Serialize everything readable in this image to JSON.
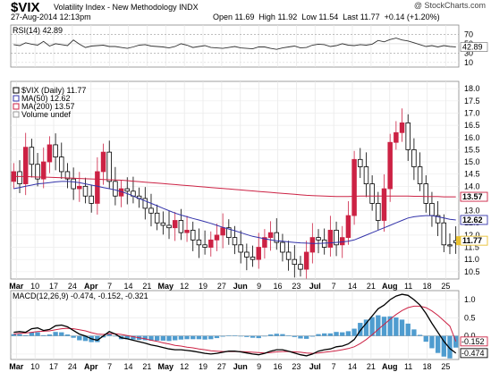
{
  "header": {
    "symbol": "$VIX",
    "name": "Volatility Index - New Methodology  INDX",
    "datetime": "27-Aug-2014 12:13pm",
    "open_label": "Open",
    "open": "11.69",
    "high_label": "High",
    "high": "11.92",
    "low_label": "Low",
    "low": "11.54",
    "last_label": "Last",
    "last": "11.77",
    "change": "+0.14 (+1.20%)",
    "credit": "@ StockCharts.com"
  },
  "chart_data": [
    {
      "type": "line",
      "panel": "rsi",
      "label": "RSI(14) 42.89",
      "yticks": [
        10,
        30,
        50,
        70
      ],
      "ylim": [
        0,
        90
      ],
      "last_label": "42.89",
      "values": [
        48,
        46,
        52,
        49,
        47,
        55,
        45,
        50,
        48,
        46,
        58,
        49,
        42,
        45,
        46,
        47,
        44,
        44,
        42,
        40,
        43,
        47,
        48,
        45,
        44,
        43,
        41,
        44,
        50,
        47,
        42,
        44,
        46,
        42,
        41,
        40,
        42,
        44,
        41,
        40,
        39,
        43,
        43,
        40,
        38,
        41,
        43,
        45,
        41,
        42,
        47,
        49,
        48,
        44,
        46,
        50,
        47,
        46,
        48,
        47,
        49,
        57,
        54,
        59,
        62,
        58,
        56,
        52,
        48,
        44,
        46,
        43,
        46,
        44,
        43
      ]
    },
    {
      "type": "candlestick",
      "panel": "price",
      "title": "$VIX (Daily) 11.77",
      "legend": [
        {
          "name": "$VIX (Daily) 11.77",
          "color": "#000000"
        },
        {
          "name": "MA(50) 12.62",
          "color": "#3333aa"
        },
        {
          "name": "MA(200) 13.57",
          "color": "#cc2244"
        },
        {
          "name": "Volume undef",
          "color": "#999999"
        }
      ],
      "ylim": [
        10.2,
        18.3
      ],
      "yticks": [
        10.5,
        11.0,
        11.5,
        12.0,
        12.5,
        13.0,
        13.5,
        14.0,
        14.5,
        15.0,
        15.5,
        16.0,
        16.5,
        17.0,
        17.5,
        18.0
      ],
      "last_badges": [
        {
          "value": 13.57,
          "label": "13.57",
          "color": "#cc2244"
        },
        {
          "value": 12.62,
          "label": "12.62",
          "color": "#3333aa"
        },
        {
          "value": 11.77,
          "label": "11.77",
          "color": "#e8c030"
        }
      ],
      "x_labels": [
        "Mar",
        "10",
        "17",
        "24",
        "Apr",
        "7",
        "14",
        "21",
        "May",
        "12",
        "19",
        "27",
        "Jun",
        "9",
        "16",
        "23",
        "Jul",
        "7",
        "14",
        "21",
        "Aug",
        "11",
        "18",
        "25"
      ],
      "close": [
        14.2,
        14.6,
        14.1,
        15.6,
        14.9,
        14.3,
        15.0,
        15.7,
        15.2,
        14.6,
        14.3,
        13.9,
        14.0,
        13.6,
        13.3,
        14.6,
        15.4,
        14.2,
        13.6,
        13.9,
        13.8,
        13.6,
        13.5,
        13.1,
        12.9,
        12.5,
        12.4,
        12.3,
        12.6,
        12.1,
        12.2,
        11.8,
        11.6,
        11.5,
        11.8,
        12.0,
        12.3,
        11.9,
        11.6,
        11.3,
        11.1,
        11.0,
        11.5,
        11.9,
        12.1,
        11.7,
        11.3,
        11.0,
        10.8,
        10.6,
        11.3,
        11.9,
        11.8,
        11.5,
        12.2,
        11.6,
        11.9,
        12.8,
        15.1,
        14.8,
        14.1,
        13.3,
        12.6,
        13.9,
        15.8,
        16.2,
        16.6,
        15.5,
        14.8,
        14.1,
        13.3,
        12.8,
        12.5,
        11.6,
        11.77
      ],
      "open": [
        14.6,
        14.1,
        15.6,
        14.9,
        14.3,
        15.0,
        15.7,
        15.2,
        14.6,
        14.3,
        13.9,
        14.0,
        13.6,
        13.3,
        14.6,
        15.4,
        14.2,
        13.6,
        13.9,
        13.8,
        13.6,
        13.5,
        13.1,
        12.9,
        12.5,
        12.4,
        12.3,
        12.6,
        12.1,
        12.2,
        11.8,
        11.6,
        11.5,
        11.8,
        12.0,
        12.3,
        11.9,
        11.6,
        11.3,
        11.1,
        11.0,
        11.5,
        11.9,
        12.1,
        11.7,
        11.3,
        11.0,
        10.8,
        10.6,
        11.3,
        11.9,
        11.8,
        11.5,
        12.2,
        11.6,
        11.9,
        12.8,
        15.1,
        14.8,
        14.1,
        13.3,
        12.6,
        13.9,
        15.8,
        16.2,
        16.6,
        15.5,
        14.8,
        14.1,
        13.3,
        12.8,
        12.5,
        11.6,
        11.6,
        11.69
      ],
      "ma50": [
        13.9,
        13.95,
        14.0,
        14.05,
        14.1,
        14.12,
        14.15,
        14.18,
        14.2,
        14.2,
        14.18,
        14.15,
        14.1,
        14.05,
        14.0,
        13.95,
        13.9,
        13.85,
        13.78,
        13.7,
        13.6,
        13.5,
        13.4,
        13.3,
        13.2,
        13.1,
        13.0,
        12.9,
        12.82,
        12.75,
        12.68,
        12.62,
        12.55,
        12.48,
        12.4,
        12.32,
        12.25,
        12.18,
        12.1,
        12.02,
        11.95,
        11.9,
        11.85,
        11.8,
        11.77,
        11.75,
        11.72,
        11.7,
        11.68,
        11.67,
        11.66,
        11.66,
        11.67,
        11.68,
        11.7,
        11.72,
        11.75,
        11.8,
        11.9,
        12.0,
        12.1,
        12.2,
        12.3,
        12.4,
        12.5,
        12.6,
        12.7,
        12.75,
        12.78,
        12.8,
        12.8,
        12.75,
        12.7,
        12.65,
        12.62
      ],
      "ma200": [
        14.4,
        14.4,
        14.4,
        14.39,
        14.38,
        14.38,
        14.37,
        14.36,
        14.35,
        14.34,
        14.33,
        14.32,
        14.31,
        14.3,
        14.29,
        14.28,
        14.27,
        14.26,
        14.25,
        14.23,
        14.21,
        14.19,
        14.17,
        14.15,
        14.13,
        14.11,
        14.09,
        14.07,
        14.05,
        14.03,
        14.01,
        13.99,
        13.97,
        13.95,
        13.93,
        13.91,
        13.89,
        13.87,
        13.85,
        13.83,
        13.81,
        13.79,
        13.77,
        13.75,
        13.73,
        13.71,
        13.69,
        13.67,
        13.65,
        13.63,
        13.62,
        13.61,
        13.6,
        13.59,
        13.58,
        13.58,
        13.58,
        13.59,
        13.6,
        13.6,
        13.6,
        13.6,
        13.6,
        13.6,
        13.6,
        13.6,
        13.6,
        13.59,
        13.59,
        13.58,
        13.58,
        13.58,
        13.57,
        13.57,
        13.57
      ]
    },
    {
      "type": "line",
      "panel": "macd",
      "label": "MACD(12,26,9) -0.474, -0.152, -0.321",
      "ylim": [
        -0.65,
        1.25
      ],
      "yticks": [
        -0.5,
        0.0,
        0.5,
        1.0
      ],
      "last_badges": [
        {
          "value": -0.152,
          "label": "-0.152",
          "color": "#cc2244"
        },
        {
          "value": -0.474,
          "label": "-0.474",
          "color": "#000000"
        }
      ],
      "macd": [
        0.1,
        0.12,
        0.1,
        0.2,
        0.22,
        0.15,
        0.18,
        0.28,
        0.3,
        0.25,
        0.15,
        0.05,
        0.0,
        -0.08,
        -0.12,
        0.0,
        0.12,
        0.05,
        -0.05,
        -0.08,
        -0.12,
        -0.16,
        -0.2,
        -0.25,
        -0.28,
        -0.32,
        -0.36,
        -0.38,
        -0.38,
        -0.4,
        -0.42,
        -0.45,
        -0.48,
        -0.5,
        -0.48,
        -0.45,
        -0.42,
        -0.42,
        -0.44,
        -0.47,
        -0.5,
        -0.52,
        -0.48,
        -0.42,
        -0.38,
        -0.38,
        -0.42,
        -0.47,
        -0.52,
        -0.55,
        -0.5,
        -0.42,
        -0.38,
        -0.36,
        -0.3,
        -0.28,
        -0.22,
        -0.1,
        0.15,
        0.35,
        0.55,
        0.75,
        0.85,
        1.0,
        1.1,
        1.15,
        1.12,
        1.0,
        0.85,
        0.62,
        0.35,
        0.1,
        -0.15,
        -0.35,
        -0.474
      ],
      "signal": [
        0.05,
        0.07,
        0.08,
        0.1,
        0.12,
        0.13,
        0.14,
        0.17,
        0.2,
        0.21,
        0.2,
        0.17,
        0.14,
        0.09,
        0.05,
        0.04,
        0.06,
        0.06,
        0.04,
        0.01,
        -0.02,
        -0.05,
        -0.08,
        -0.12,
        -0.15,
        -0.19,
        -0.22,
        -0.26,
        -0.28,
        -0.31,
        -0.33,
        -0.36,
        -0.38,
        -0.41,
        -0.42,
        -0.43,
        -0.43,
        -0.43,
        -0.43,
        -0.44,
        -0.45,
        -0.46,
        -0.47,
        -0.46,
        -0.44,
        -0.43,
        -0.43,
        -0.44,
        -0.45,
        -0.47,
        -0.48,
        -0.47,
        -0.45,
        -0.43,
        -0.41,
        -0.38,
        -0.35,
        -0.3,
        -0.21,
        -0.1,
        0.03,
        0.18,
        0.32,
        0.46,
        0.59,
        0.7,
        0.78,
        0.82,
        0.82,
        0.78,
        0.69,
        0.57,
        0.42,
        0.27,
        -0.152
      ]
    }
  ]
}
